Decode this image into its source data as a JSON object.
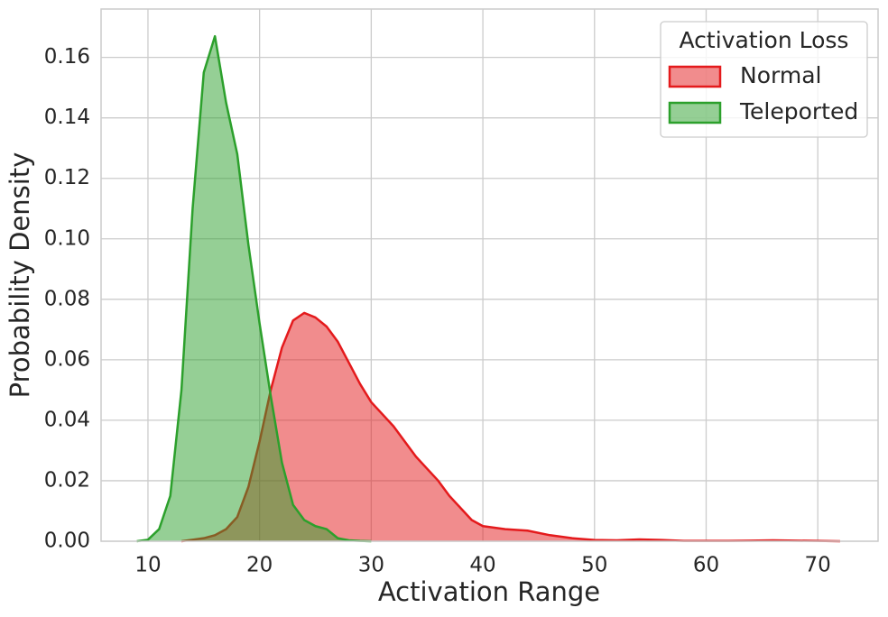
{
  "chart_data": {
    "type": "area",
    "xlabel": "Activation Range",
    "ylabel": "Probability Density",
    "legend_title": "Activation Loss",
    "legend": "upper right",
    "grid": true,
    "x": [
      9,
      10,
      11,
      12,
      13,
      14,
      15,
      16,
      17,
      18,
      19,
      20,
      21,
      22,
      23,
      24,
      25,
      26,
      27,
      28,
      29,
      30,
      31,
      32,
      33,
      34,
      35,
      36,
      37,
      38,
      39,
      40,
      42,
      44,
      46,
      48,
      50,
      52,
      54,
      56,
      58,
      60,
      62,
      64,
      66,
      68,
      70,
      72
    ],
    "series": [
      {
        "name": "Normal",
        "color": "#e41a1c",
        "values": [
          null,
          null,
          null,
          null,
          0,
          0.0005,
          0.001,
          0.002,
          0.004,
          0.008,
          0.018,
          0.033,
          0.05,
          0.064,
          0.073,
          0.0755,
          0.074,
          0.071,
          0.066,
          0.059,
          0.052,
          0.046,
          0.042,
          0.038,
          0.033,
          0.028,
          0.024,
          0.02,
          0.015,
          0.011,
          0.007,
          0.005,
          0.004,
          0.0035,
          0.002,
          0.001,
          0.0004,
          0.0003,
          0.0006,
          0.0004,
          0.0001,
          0.0001,
          0.0001,
          0.0002,
          0.0003,
          0.0002,
          0.0001,
          0
        ]
      },
      {
        "name": "Teleported",
        "color": "#2ca02c",
        "values": [
          0,
          0.0005,
          0.004,
          0.015,
          0.05,
          0.11,
          0.155,
          0.167,
          0.145,
          0.128,
          0.098,
          0.072,
          0.048,
          0.026,
          0.012,
          0.007,
          0.005,
          0.004,
          0.001,
          0.0003,
          0.0001,
          0,
          null,
          null,
          null,
          null,
          null,
          null,
          null,
          null,
          null,
          null,
          null,
          null,
          null,
          null,
          null,
          null,
          null,
          null,
          null,
          null,
          null,
          null,
          null,
          null,
          null,
          null
        ]
      }
    ],
    "xlim": [
      5.8,
      75.4
    ],
    "ylim": [
      0,
      0.176
    ],
    "xticks": [
      10,
      20,
      30,
      40,
      50,
      60,
      70
    ],
    "yticks": [
      {
        "value": 0,
        "label": "0.00"
      },
      {
        "value": 0.02,
        "label": "0.02"
      },
      {
        "value": 0.04,
        "label": "0.04"
      },
      {
        "value": 0.06,
        "label": "0.06"
      },
      {
        "value": 0.08,
        "label": "0.08"
      },
      {
        "value": 0.1,
        "label": "0.10"
      },
      {
        "value": 0.12,
        "label": "0.12"
      },
      {
        "value": 0.14,
        "label": "0.14"
      },
      {
        "value": 0.16,
        "label": "0.16"
      }
    ]
  }
}
